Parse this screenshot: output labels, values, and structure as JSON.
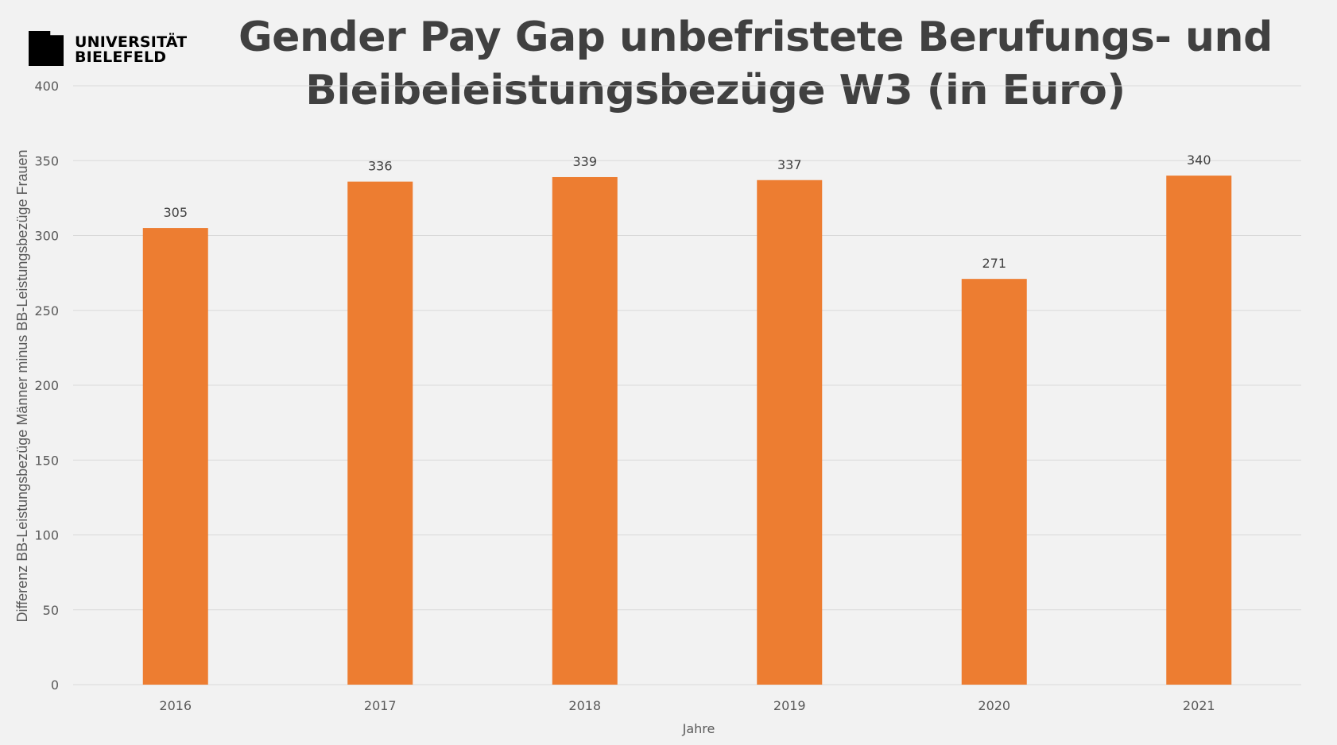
{
  "logo": {
    "line1": "UNIVERSITÄT",
    "line2": "BIELEFELD"
  },
  "chart_data": {
    "type": "bar",
    "title_lines": [
      "Gender Pay Gap unbefristete Berufungs- und",
      "Bleibeleistungsbezüge W3 (in Euro)"
    ],
    "categories": [
      "2016",
      "2017",
      "2018",
      "2019",
      "2020",
      "2021"
    ],
    "values": [
      305,
      336,
      339,
      337,
      271,
      340
    ],
    "xlabel": "Jahre",
    "ylabel": "Differenz BB-Leistungsbezüge Männer  minus BB-Leistungsbezüge Frauen",
    "ylim": [
      0,
      400
    ],
    "yticks": [
      0,
      50,
      100,
      150,
      200,
      250,
      300,
      350,
      400
    ],
    "grid": true,
    "data_labels": true,
    "legend": "none",
    "bar_color": "#ed7d31",
    "grid_color": "#d9d9d9"
  }
}
